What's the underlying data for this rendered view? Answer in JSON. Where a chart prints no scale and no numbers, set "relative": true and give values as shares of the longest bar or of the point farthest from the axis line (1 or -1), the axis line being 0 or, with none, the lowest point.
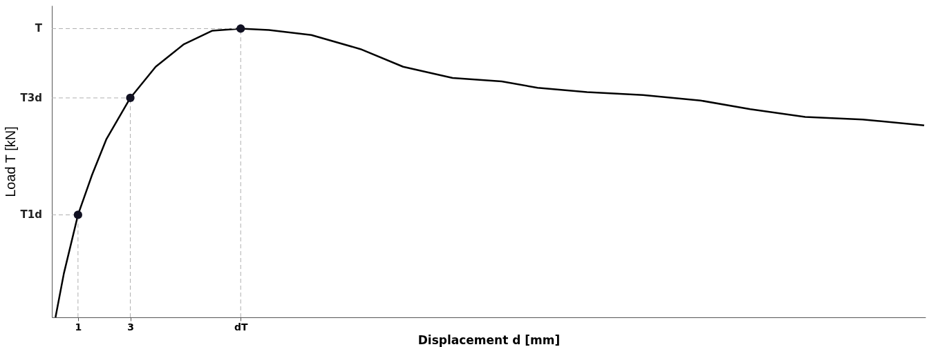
{
  "chart_data": {
    "type": "line",
    "relative": true,
    "xlabel": "Displacement d [mm]",
    "ylabel": "Load T [kN]",
    "xlim": [
      0,
      33.4
    ],
    "xticks": [
      1,
      3,
      {
        "value": 7.22,
        "label": "dT"
      }
    ],
    "grid": false,
    "series": [
      {
        "color": "#000000",
        "marker": "none",
        "x": [
          0.14,
          0.46,
          1,
          1.54,
          2.08,
          3,
          3.97,
          5.05,
          6.14,
          7.22,
          8.3,
          9.92,
          11.8,
          13.43,
          15.32,
          17.2,
          18.57,
          20.46,
          22.6,
          24.8,
          26.7,
          28.8,
          31.0,
          33.35
        ],
        "values": [
          0,
          0.152,
          0.355,
          0.494,
          0.616,
          0.76,
          0.868,
          0.946,
          0.993,
          1.0,
          0.995,
          0.978,
          0.929,
          0.868,
          0.829,
          0.817,
          0.795,
          0.78,
          0.77,
          0.751,
          0.721,
          0.694,
          0.685,
          0.665
        ]
      },
      {
        "type": "scatter",
        "color": "#111122",
        "marker": "circle",
        "x": [
          1,
          3,
          7.22
        ],
        "values": [
          0.355,
          0.76,
          1.0
        ]
      }
    ],
    "ref_lines": [
      {
        "axis": "y",
        "value": 0.355,
        "label": "T1d",
        "color": "#b0b0b0",
        "line_style": "dashed"
      },
      {
        "axis": "y",
        "value": 0.76,
        "label": "T3d",
        "color": "#b0b0b0",
        "line_style": "dashed"
      },
      {
        "axis": "y",
        "value": 1.0,
        "label": "T",
        "color": "#b0b0b0",
        "line_style": "dashed"
      },
      {
        "axis": "x",
        "value": 1,
        "color": "#b0b0b0",
        "line_style": "dashed"
      },
      {
        "axis": "x",
        "value": 3,
        "color": "#b0b0b0",
        "line_style": "dashed"
      },
      {
        "axis": "x",
        "value": 7.22,
        "color": "#b0b0b0",
        "line_style": "dashed"
      }
    ]
  }
}
